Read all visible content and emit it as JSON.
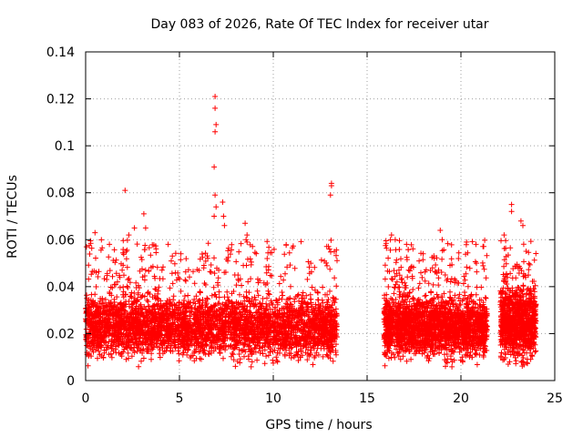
{
  "chart_data": {
    "type": "scatter",
    "title": "Day 083 of 2026, Rate Of TEC Index for receiver utar",
    "xlabel": "GPS time / hours",
    "ylabel": "ROTI / TECUs",
    "xlim": [
      0,
      25
    ],
    "ylim": [
      0,
      0.14
    ],
    "xticks": [
      "0",
      "5",
      "10",
      "15",
      "20",
      "25"
    ],
    "yticks": [
      "0",
      "0.02",
      "0.04",
      "0.06",
      "0.08",
      "0.1",
      "0.12",
      "0.14"
    ],
    "grid": true,
    "marker": "+",
    "color": "#ff0000",
    "data_segments": [
      {
        "x_start": 0.0,
        "x_end": 13.4,
        "typical_range": [
          0.005,
          0.035
        ],
        "upper_envelope": 0.06
      },
      {
        "x_start": 15.9,
        "x_end": 21.4,
        "typical_range": [
          0.005,
          0.035
        ],
        "upper_envelope": 0.06
      },
      {
        "x_start": 22.1,
        "x_end": 24.0,
        "typical_range": [
          0.003,
          0.04
        ],
        "upper_envelope": 0.06
      }
    ],
    "peaks": [
      {
        "x": 2.1,
        "y": 0.081
      },
      {
        "x": 2.6,
        "y": 0.065
      },
      {
        "x": 2.3,
        "y": 0.062
      },
      {
        "x": 3.1,
        "y": 0.071
      },
      {
        "x": 3.2,
        "y": 0.065
      },
      {
        "x": 0.5,
        "y": 0.063
      },
      {
        "x": 4.4,
        "y": 0.058
      },
      {
        "x": 6.9,
        "y": 0.121
      },
      {
        "x": 6.9,
        "y": 0.116
      },
      {
        "x": 6.95,
        "y": 0.109
      },
      {
        "x": 6.9,
        "y": 0.106
      },
      {
        "x": 6.85,
        "y": 0.091
      },
      {
        "x": 6.9,
        "y": 0.079
      },
      {
        "x": 6.95,
        "y": 0.074
      },
      {
        "x": 6.85,
        "y": 0.07
      },
      {
        "x": 7.3,
        "y": 0.076
      },
      {
        "x": 7.35,
        "y": 0.07
      },
      {
        "x": 7.4,
        "y": 0.066
      },
      {
        "x": 8.5,
        "y": 0.067
      },
      {
        "x": 8.6,
        "y": 0.062
      },
      {
        "x": 8.55,
        "y": 0.06
      },
      {
        "x": 8.6,
        "y": 0.059
      },
      {
        "x": 13.1,
        "y": 0.084
      },
      {
        "x": 13.1,
        "y": 0.083
      },
      {
        "x": 13.05,
        "y": 0.079
      },
      {
        "x": 13.0,
        "y": 0.056
      },
      {
        "x": 16.3,
        "y": 0.062
      },
      {
        "x": 16.5,
        "y": 0.06
      },
      {
        "x": 17.1,
        "y": 0.058
      },
      {
        "x": 18.9,
        "y": 0.064
      },
      {
        "x": 19.0,
        "y": 0.06
      },
      {
        "x": 20.3,
        "y": 0.059
      },
      {
        "x": 20.8,
        "y": 0.058
      },
      {
        "x": 22.3,
        "y": 0.062
      },
      {
        "x": 22.7,
        "y": 0.075
      },
      {
        "x": 22.7,
        "y": 0.072
      },
      {
        "x": 23.2,
        "y": 0.068
      },
      {
        "x": 23.3,
        "y": 0.066
      }
    ]
  }
}
